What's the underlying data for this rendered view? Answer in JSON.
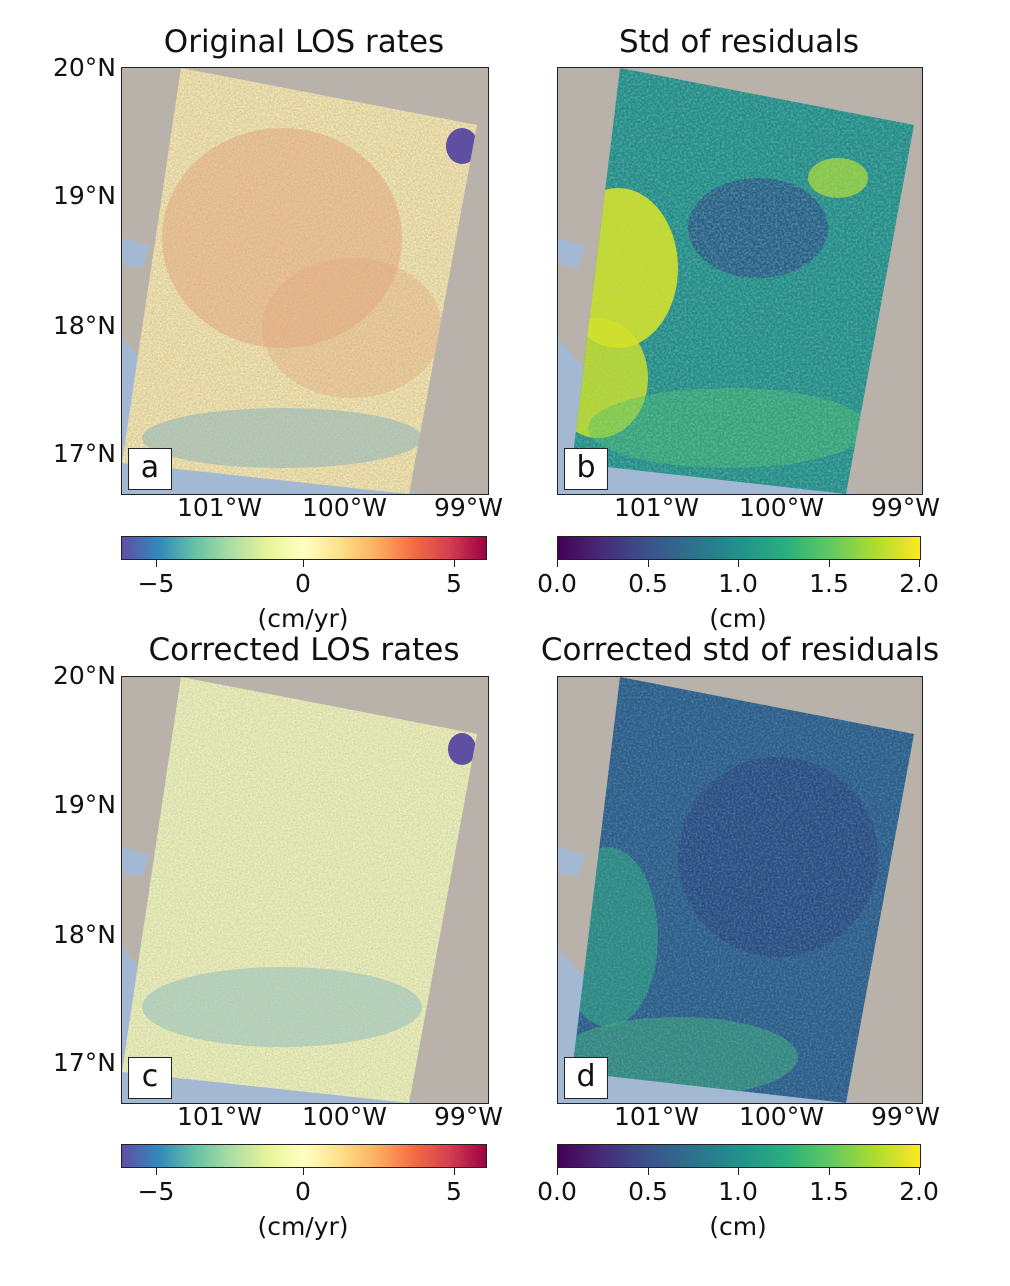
{
  "panels": [
    {
      "title": "Original LOS rates",
      "label": "a",
      "colormap": "Spectral_r",
      "lat_ticks": [
        "20°N",
        "19°N",
        "18°N",
        "17°N"
      ],
      "lon_ticks": [
        "101°W",
        "100°W",
        "99°W"
      ],
      "colorbar_ticks": [
        "−5",
        "0",
        "5"
      ],
      "colorbar_range": [
        -6,
        6
      ],
      "unit": "(cm/yr)"
    },
    {
      "title": "Std of residuals",
      "label": "b",
      "colormap": "viridis",
      "lon_ticks": [
        "101°W",
        "100°W",
        "99°W"
      ],
      "colorbar_ticks": [
        "0.0",
        "0.5",
        "1.0",
        "1.5",
        "2.0"
      ],
      "colorbar_range": [
        0,
        2
      ],
      "unit": "(cm)"
    },
    {
      "title": "Corrected LOS rates",
      "label": "c",
      "colormap": "Spectral_r",
      "lat_ticks": [
        "20°N",
        "19°N",
        "18°N",
        "17°N"
      ],
      "lon_ticks": [
        "101°W",
        "100°W",
        "99°W"
      ],
      "colorbar_ticks": [
        "−5",
        "0",
        "5"
      ],
      "colorbar_range": [
        -6,
        6
      ],
      "unit": "(cm/yr)"
    },
    {
      "title": "Corrected std of residuals",
      "label": "d",
      "colormap": "viridis",
      "lon_ticks": [
        "101°W",
        "100°W",
        "99°W"
      ],
      "colorbar_ticks": [
        "0.0",
        "0.5",
        "1.0",
        "1.5",
        "2.0"
      ],
      "colorbar_range": [
        0,
        2
      ],
      "unit": "(cm)"
    }
  ],
  "colors": {
    "terrain": "#b9b2aa",
    "ocean": "#a3b8d3",
    "lake": "#a3b8d3"
  }
}
